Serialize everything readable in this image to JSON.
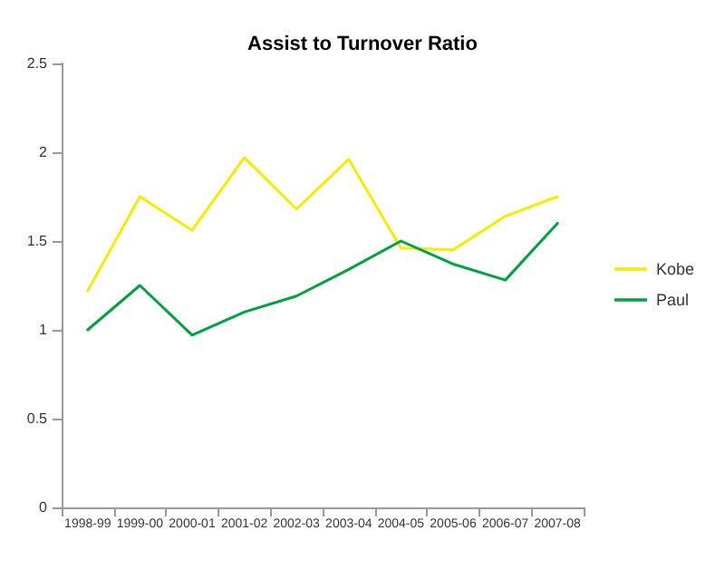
{
  "chart_data": {
    "type": "line",
    "title": "Assist to Turnover Ratio",
    "categories": [
      "1998-99",
      "1999-00",
      "2000-01",
      "2001-02",
      "2002-03",
      "2003-04",
      "2004-05",
      "2005-06",
      "2006-07",
      "2007-08"
    ],
    "series": [
      {
        "name": "Kobe",
        "color": "#f2ee00",
        "values": [
          1.22,
          1.75,
          1.56,
          1.97,
          1.68,
          1.96,
          1.46,
          1.45,
          1.64,
          1.75
        ]
      },
      {
        "name": "Paul",
        "color": "#00a040",
        "values": [
          1.0,
          1.25,
          0.97,
          1.1,
          1.19,
          1.34,
          1.5,
          1.37,
          1.28,
          1.6
        ]
      }
    ],
    "ylim": [
      0,
      2.5
    ],
    "yticks": [
      0,
      0.5,
      1,
      1.5,
      2,
      2.5
    ],
    "grid": false,
    "legend": "right",
    "marker": "none",
    "line_style": "solid"
  }
}
